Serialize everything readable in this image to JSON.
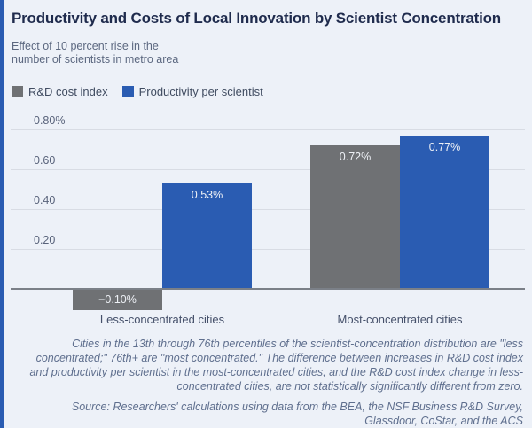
{
  "header": {
    "title": "Productivity and Costs of Local Innovation by Scientist Concentration",
    "subtitle": "Effect of 10 percent rise in the\nnumber of scientists in metro area"
  },
  "colors": {
    "background": "#edf1f8",
    "accent_stripe": "#2a5cb2",
    "bar_gray": "#6f7174",
    "bar_blue": "#2a5cb2",
    "gridline": "#d8dce4",
    "zero_line": "#7b8088",
    "bar_label_text": "#eef1f6"
  },
  "chart_data": {
    "type": "bar",
    "categories": [
      "Less-concentrated cities",
      "Most-concentrated cities"
    ],
    "series": [
      {
        "name": "R&D cost index",
        "color": "#6f7174",
        "values": [
          -0.1,
          0.72
        ],
        "value_labels": [
          "−0.10%",
          "0.72%"
        ]
      },
      {
        "name": "Productivity per scientist",
        "color": "#2a5cb2",
        "values": [
          0.53,
          0.77
        ],
        "value_labels": [
          "0.53%",
          "0.77%"
        ]
      }
    ],
    "y_ticks": [
      {
        "value": 0.2,
        "label": "0.20"
      },
      {
        "value": 0.4,
        "label": "0.40"
      },
      {
        "value": 0.6,
        "label": "0.60"
      },
      {
        "value": 0.8,
        "label": "0.80%"
      }
    ],
    "ylim": [
      -0.17,
      0.87
    ],
    "grid": true,
    "legend_position": "top-left",
    "value_unit": "%"
  },
  "footer": {
    "footnote": "Cities in the 13th through 76th percentiles of the scientist-concentration distribution are \"less concentrated;\" 76th+ are \"most concentrated.\" The difference between increases in R&D cost index and productivity per scientist in the most-concentrated cities, and the R&D cost index change in less-concentrated cities, are not statistically significantly different from zero.",
    "source": "Source: Researchers' calculations using data from the BEA, the NSF Business R&D Survey, Glassdoor, CoStar, and the ACS"
  }
}
